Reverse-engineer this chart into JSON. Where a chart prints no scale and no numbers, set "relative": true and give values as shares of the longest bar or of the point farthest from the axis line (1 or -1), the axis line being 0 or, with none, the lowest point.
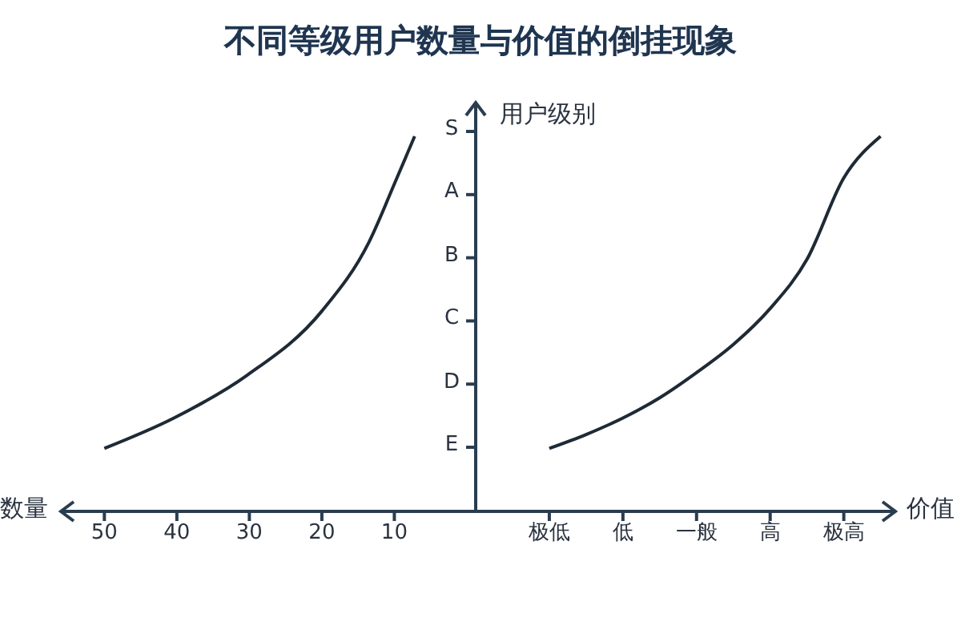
{
  "chart_data": [
    {
      "type": "line",
      "title": "不同等级用户数量与价值的倒挂现象",
      "xlabel": "数量",
      "x": [
        50,
        40.4,
        30.3,
        20,
        13.5,
        9.8,
        7.2
      ],
      "series": [
        {
          "color": "#1e2a36",
          "values": [
            0.168,
            0.249,
            0.363,
            0.534,
            0.718,
            0.882,
            1
          ]
        }
      ],
      "xlim": [
        56,
        -1
      ],
      "xticks": [
        50,
        40,
        30,
        20,
        10
      ],
      "relative": true,
      "marker": "none",
      "line_style": "solid"
    },
    {
      "type": "line",
      "xlabel": "价值",
      "ylabel": "用户级别",
      "categories": [
        "极低",
        null,
        "低",
        null,
        "一般",
        null,
        "高",
        null,
        "极高",
        null
      ],
      "series": [
        {
          "color": "#1e2a36",
          "values": [
            0.168,
            0.205,
            0.249,
            0.303,
            0.37,
            0.445,
            0.541,
            0.672,
            0.889,
            1
          ]
        }
      ],
      "relative": true,
      "annotations": [
        "E",
        "D",
        "C",
        "B",
        "A",
        "S"
      ],
      "marker": "none",
      "line_style": "solid"
    }
  ]
}
